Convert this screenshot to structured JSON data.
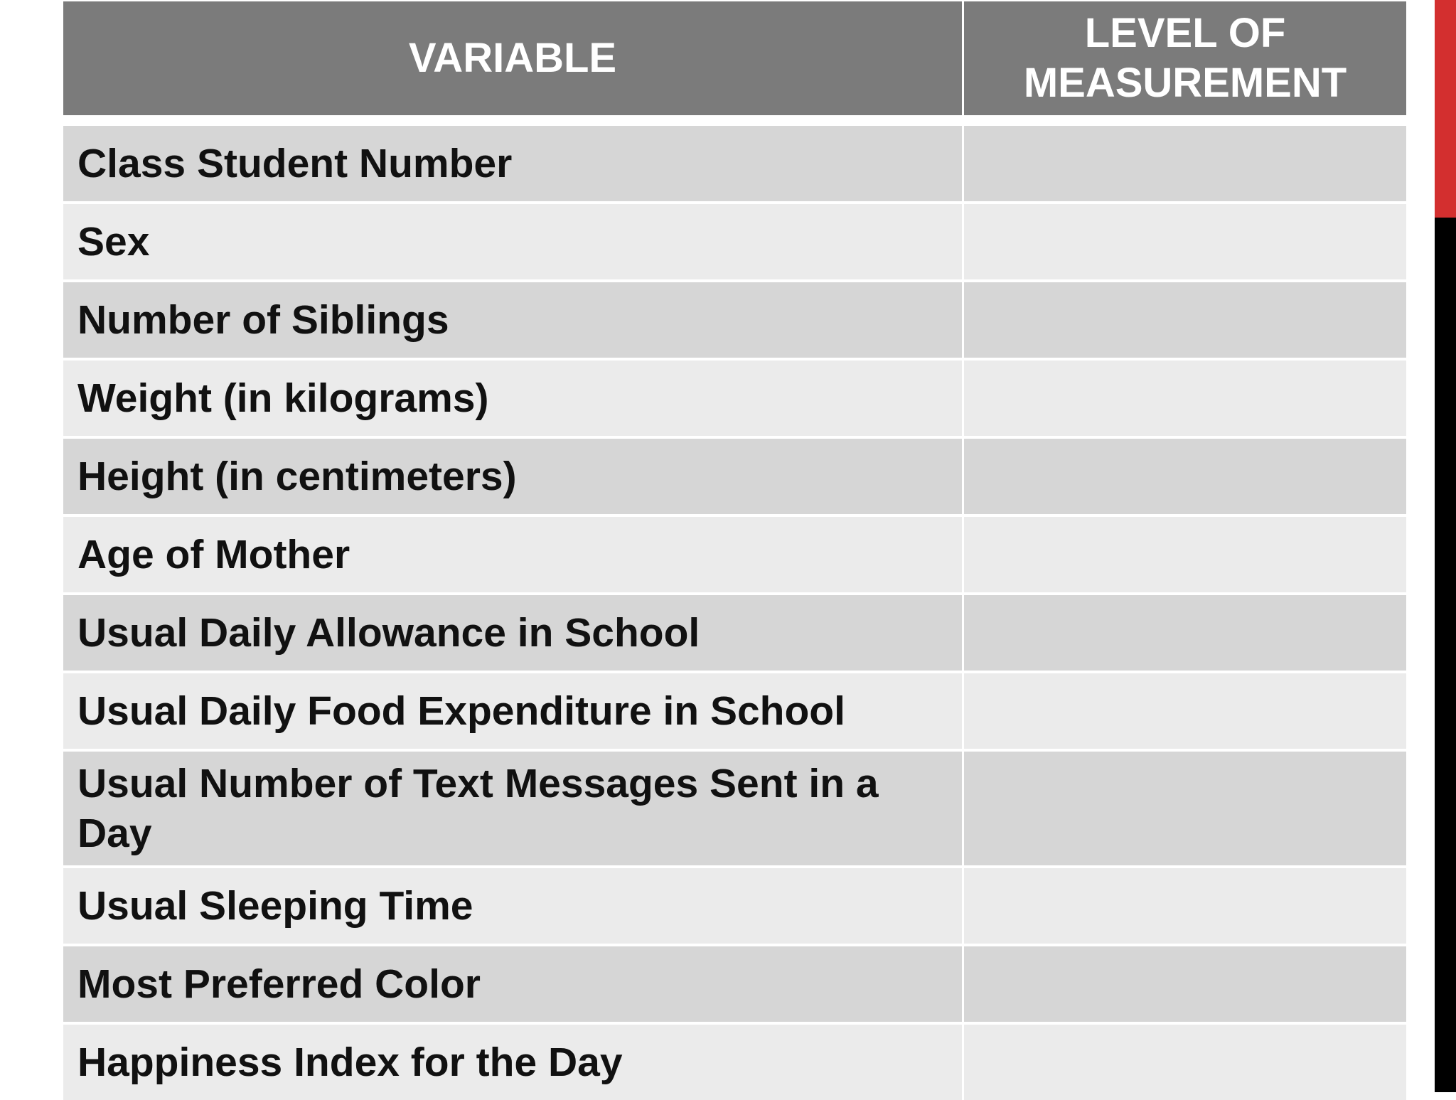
{
  "table": {
    "headers": {
      "variable": "VARIABLE",
      "level": "LEVEL OF MEASUREMENT"
    },
    "rows": [
      {
        "variable": "Class Student Number",
        "level": ""
      },
      {
        "variable": "Sex",
        "level": ""
      },
      {
        "variable": "Number of Siblings",
        "level": ""
      },
      {
        "variable": "Weight (in kilograms)",
        "level": ""
      },
      {
        "variable": "Height (in centimeters)",
        "level": ""
      },
      {
        "variable": "Age of Mother",
        "level": ""
      },
      {
        "variable": "Usual Daily Allowance in School",
        "level": ""
      },
      {
        "variable": "Usual Daily Food Expenditure in School",
        "level": ""
      },
      {
        "variable": "Usual Number of Text Messages Sent in a Day",
        "level": ""
      },
      {
        "variable": "Usual Sleeping Time",
        "level": ""
      },
      {
        "variable": "Most Preferred Color",
        "level": ""
      },
      {
        "variable": "Happiness Index for the Day",
        "level": ""
      }
    ]
  },
  "colors": {
    "header_bg": "#7b7b7b",
    "row_dark": "#d6d6d6",
    "row_light": "#ebebeb",
    "accent_red": "#d32f2f",
    "accent_black": "#000000"
  }
}
